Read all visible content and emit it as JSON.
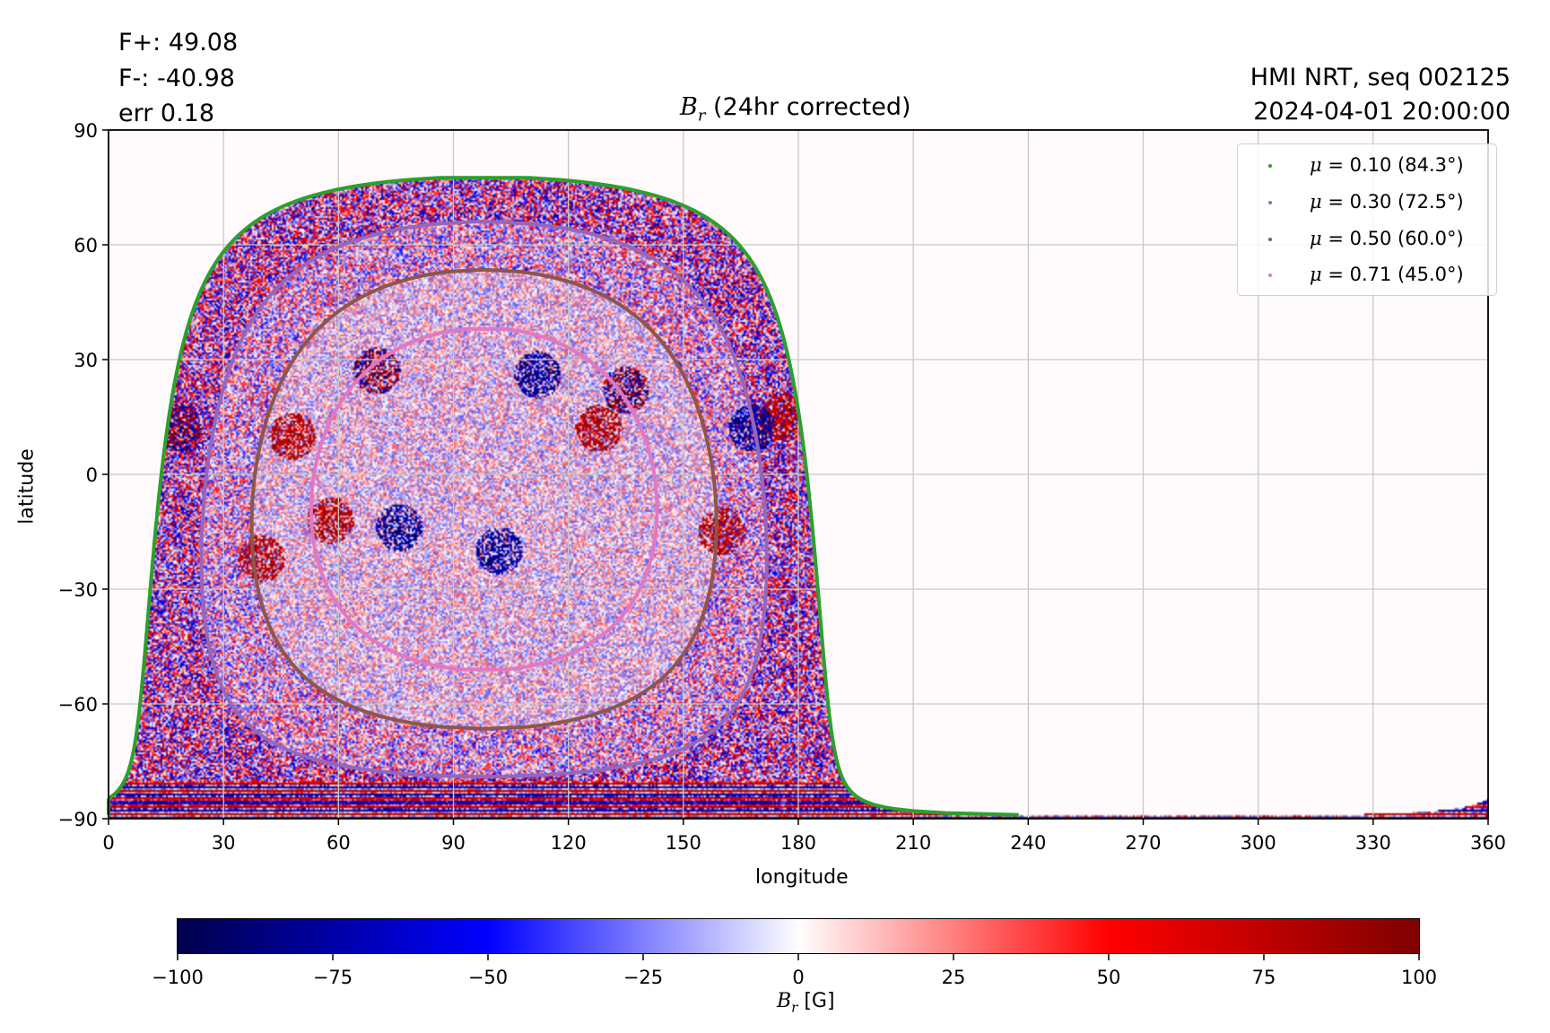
{
  "header": {
    "flux_positive": "F+: 49.08",
    "flux_negative": "F-: -40.98",
    "error": "err 0.18",
    "title_symbol": "B",
    "title_subscript": "r",
    "title_rest": " (24hr corrected)",
    "instrument": "HMI NRT, seq 002125",
    "timestamp": "2024-04-01 20:00:00"
  },
  "chart_data": {
    "type": "heatmap",
    "title": "B_r (24hr corrected)",
    "xlabel": "longitude",
    "ylabel": "latitude",
    "xlim": [
      0,
      360
    ],
    "ylim": [
      -90,
      90
    ],
    "grid": true,
    "x_ticks": [
      "0",
      "30",
      "60",
      "90",
      "120",
      "150",
      "180",
      "210",
      "240",
      "270",
      "300",
      "330",
      "360"
    ],
    "y_ticks": [
      "90",
      "60",
      "30",
      "0",
      "−30",
      "−60",
      "−90"
    ],
    "x_tick_values": [
      0,
      30,
      60,
      90,
      120,
      150,
      180,
      210,
      240,
      270,
      300,
      330,
      360
    ],
    "y_tick_values": [
      90,
      60,
      30,
      0,
      -30,
      -60,
      -90
    ],
    "disk_center_longitude": 98,
    "disk_center_latitude": -6.5,
    "colormap": "seismic",
    "colorbar": {
      "label_symbol": "B",
      "label_subscript": "r",
      "label_unit": " [G]",
      "vmin": -100,
      "vmax": 100,
      "ticks": [
        "−100",
        "−75",
        "−50",
        "−25",
        "0",
        "25",
        "50",
        "75",
        "100"
      ],
      "tick_values": [
        -100,
        -75,
        -50,
        -25,
        0,
        25,
        50,
        75,
        100
      ]
    },
    "legend": {
      "placement": "top-right",
      "entries": [
        {
          "symbol": "μ",
          "text": " = 0.10 (84.3°)",
          "mu": 0.1,
          "angle_deg": 84.3,
          "color": "#2ca02c"
        },
        {
          "symbol": "μ",
          "text": " = 0.30 (72.5°)",
          "mu": 0.3,
          "angle_deg": 72.5,
          "color": "#9467bd"
        },
        {
          "symbol": "μ",
          "text": " = 0.50 (60.0°)",
          "mu": 0.5,
          "angle_deg": 60.0,
          "color": "#8c564b"
        },
        {
          "symbol": "μ",
          "text": " = 0.71 (45.0°)",
          "mu": 0.71,
          "angle_deg": 45.0,
          "color": "#e377c2"
        }
      ]
    },
    "active_regions": [
      {
        "lon": 18,
        "lat": 12,
        "polarity": "mixed"
      },
      {
        "lon": 48,
        "lat": 10,
        "polarity": "positive"
      },
      {
        "lon": 70,
        "lat": 27,
        "polarity": "mixed"
      },
      {
        "lon": 58,
        "lat": -12,
        "polarity": "positive"
      },
      {
        "lon": 40,
        "lat": -22,
        "polarity": "positive"
      },
      {
        "lon": 76,
        "lat": -14,
        "polarity": "negative"
      },
      {
        "lon": 102,
        "lat": -20,
        "polarity": "negative"
      },
      {
        "lon": 135,
        "lat": 22,
        "polarity": "mixed"
      },
      {
        "lon": 128,
        "lat": 12,
        "polarity": "positive"
      },
      {
        "lon": 176,
        "lat": 15,
        "polarity": "positive"
      },
      {
        "lon": 168,
        "lat": 12,
        "polarity": "negative"
      },
      {
        "lon": 160,
        "lat": -15,
        "polarity": "positive"
      },
      {
        "lon": 112,
        "lat": 26,
        "polarity": "negative"
      }
    ]
  }
}
